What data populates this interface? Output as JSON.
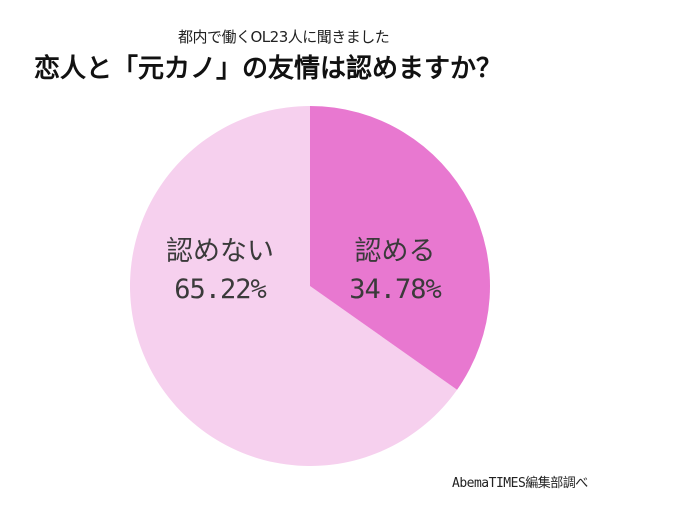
{
  "header": {
    "subtitle": "都内で働くOL23人に聞きました",
    "title": "恋人と「元カノ」の友情は認めますか？"
  },
  "source": "AbemaTIMES編集部調べ",
  "colors": {
    "accept": "#e878d0",
    "reject": "#f6d0ee",
    "background": "#ffffff"
  },
  "chart_data": {
    "type": "pie",
    "title": "恋人と「元カノ」の友情は認めますか？",
    "subtitle": "都内で働くOL23人に聞きました",
    "categories": [
      "認める",
      "認めない"
    ],
    "values": [
      34.78,
      65.22
    ],
    "labels": [
      {
        "name": "認める",
        "pct": "34.78%"
      },
      {
        "name": "認めない",
        "pct": "65.22%"
      }
    ],
    "start_angle": "12 o'clock, clockwise",
    "legend": "none (labels on slices)",
    "source": "AbemaTIMES編集部調べ"
  }
}
